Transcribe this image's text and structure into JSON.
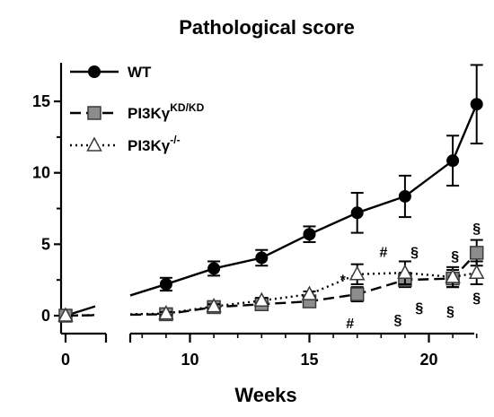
{
  "chart_data": {
    "type": "line",
    "title": "Pathological score",
    "xlabel": "Weeks",
    "ylabel": "",
    "xlim": [
      0,
      22.5
    ],
    "ylim": [
      0,
      17.5
    ],
    "x_ticks": [
      0,
      10,
      15,
      20
    ],
    "y_ticks": [
      0,
      5,
      10,
      15
    ],
    "x_axis_break": [
      0.5,
      7.5
    ],
    "legend_position": "top-left",
    "grid": false,
    "series": [
      {
        "name": "WT",
        "marker": "circle",
        "line_style": "solid",
        "x": [
          0,
          9,
          11,
          13,
          15,
          17,
          19,
          21,
          22
        ],
        "y": [
          0,
          2.2,
          3.3,
          4.05,
          5.7,
          7.2,
          8.35,
          10.85,
          14.8
        ],
        "err": [
          0,
          0.45,
          0.5,
          0.55,
          0.55,
          1.4,
          1.45,
          1.75,
          2.75
        ]
      },
      {
        "name": "PI3Kγ",
        "name_sup": "KD/KD",
        "marker": "square",
        "line_style": "dashed",
        "x": [
          0,
          9,
          11,
          13,
          15,
          17,
          19,
          21,
          22
        ],
        "y": [
          0,
          0.1,
          0.6,
          0.8,
          1.0,
          1.5,
          2.5,
          2.6,
          4.4
        ],
        "err": [
          0,
          0.1,
          0.1,
          0.2,
          0.2,
          0.5,
          0.5,
          0.6,
          0.9
        ]
      },
      {
        "name": "PI3Kγ",
        "name_sup": "-/-",
        "marker": "triangle",
        "line_style": "dotted",
        "x": [
          0,
          9,
          11,
          13,
          15,
          17,
          19,
          21,
          22
        ],
        "y": [
          0,
          0.15,
          0.65,
          1.05,
          1.5,
          2.9,
          3.0,
          2.7,
          3.0
        ],
        "err": [
          0,
          0.1,
          0.15,
          0.2,
          0.2,
          0.7,
          0.8,
          0.7,
          0.8
        ]
      }
    ],
    "annotations": [
      {
        "text": "*",
        "x": 16.4,
        "y": 2.55
      },
      {
        "text": "#",
        "x": 18.1,
        "y": 4.5
      },
      {
        "text": "§",
        "x": 19.4,
        "y": 4.5
      },
      {
        "text": "§",
        "x": 21.1,
        "y": 4.2
      },
      {
        "text": "§",
        "x": 22,
        "y": 6.15
      },
      {
        "text": "§",
        "x": 22,
        "y": 1.3
      },
      {
        "text": "#",
        "x": 16.7,
        "y": -0.5
      },
      {
        "text": "§",
        "x": 18.7,
        "y": -0.25
      },
      {
        "text": "§",
        "x": 19.6,
        "y": 0.6
      },
      {
        "text": "§",
        "x": 20.9,
        "y": 0.35
      }
    ]
  }
}
